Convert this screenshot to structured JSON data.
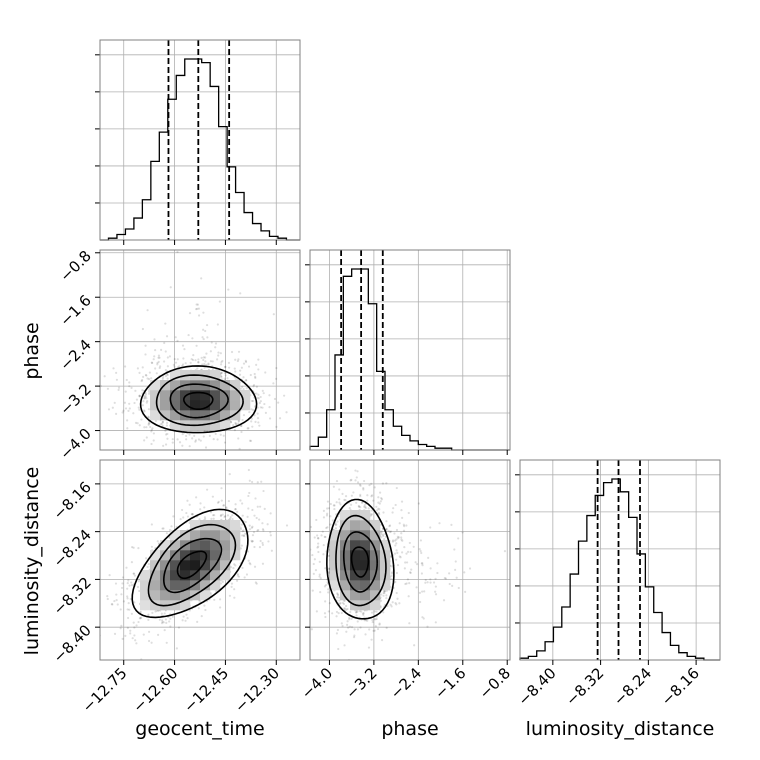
{
  "chart_data": {
    "type": "corner",
    "parameters": [
      "geocent_time",
      "phase",
      "luminosity_distance"
    ],
    "grid": true,
    "quantile_lines": "dashed",
    "axes": {
      "geocent_time": {
        "range": [
          -12.82,
          -12.23
        ],
        "ticks": [
          -12.75,
          -12.6,
          -12.45,
          -12.3
        ],
        "tick_labels": [
          "−12.75",
          "−12.60",
          "−12.45",
          "−12.30"
        ],
        "quantiles": [
          -12.618,
          -12.53,
          -12.439
        ]
      },
      "phase": {
        "range": [
          -4.35,
          -0.75
        ],
        "ticks": [
          -4.0,
          -3.2,
          -2.4,
          -1.6,
          -0.8
        ],
        "tick_labels": [
          "−4.0",
          "−3.2",
          "−2.4",
          "−1.6",
          "−0.8"
        ],
        "quantiles": [
          -3.79,
          -3.43,
          -3.04
        ]
      },
      "luminosity_distance": {
        "range": [
          -8.455,
          -8.12
        ],
        "ticks": [
          -8.4,
          -8.32,
          -8.24,
          -8.16
        ],
        "tick_labels": [
          "−8.40",
          "−8.32",
          "−8.24",
          "−8.16"
        ],
        "quantiles": [
          -8.325,
          -8.29,
          -8.254
        ]
      }
    },
    "histograms": {
      "geocent_time": {
        "bin_edges": [
          -12.82,
          -12.795,
          -12.77,
          -12.745,
          -12.72,
          -12.695,
          -12.67,
          -12.645,
          -12.62,
          -12.595,
          -12.57,
          -12.545,
          -12.52,
          -12.495,
          -12.47,
          -12.445,
          -12.42,
          -12.395,
          -12.37,
          -12.345,
          -12.32,
          -12.295,
          -12.27,
          -12.245,
          -12.23
        ],
        "counts": [
          0,
          1,
          3,
          6,
          12,
          22,
          43,
          59,
          77,
          90,
          99,
          99,
          97,
          84,
          62,
          40,
          26,
          15,
          9,
          5,
          2,
          1,
          0,
          0
        ]
      },
      "phase": {
        "bin_edges": [
          -4.35,
          -4.2,
          -4.05,
          -3.9,
          -3.75,
          -3.6,
          -3.45,
          -3.3,
          -3.15,
          -3.0,
          -2.85,
          -2.7,
          -2.55,
          -2.4,
          -2.25,
          -2.1,
          -1.95,
          -1.8,
          -1.65,
          -1.5,
          -1.35,
          -1.2,
          -1.05,
          -0.9,
          -0.75
        ],
        "counts": [
          2,
          7,
          22,
          52,
          95,
          99,
          99,
          80,
          43,
          22,
          13,
          8,
          5,
          3,
          2,
          1,
          1,
          0,
          0,
          0,
          0,
          0,
          0,
          0
        ]
      },
      "luminosity_distance": {
        "bin_edges": [
          -8.455,
          -8.441,
          -8.427,
          -8.413,
          -8.399,
          -8.385,
          -8.371,
          -8.357,
          -8.343,
          -8.329,
          -8.315,
          -8.301,
          -8.287,
          -8.273,
          -8.259,
          -8.245,
          -8.231,
          -8.217,
          -8.203,
          -8.189,
          -8.175,
          -8.161,
          -8.147,
          -8.133,
          -8.12
        ],
        "counts": [
          1,
          2,
          5,
          10,
          18,
          29,
          47,
          65,
          79,
          90,
          97,
          99,
          92,
          78,
          58,
          40,
          26,
          15,
          8,
          4,
          2,
          1,
          0,
          0
        ]
      }
    },
    "pairs": [
      {
        "x": "geocent_time",
        "y": "phase",
        "center": [
          -12.53,
          -3.46
        ],
        "spread": [
          0.085,
          0.3
        ],
        "correlation": 0.0,
        "contour_levels": [
          "0.5σ",
          "1σ",
          "1.5σ",
          "2σ"
        ]
      },
      {
        "x": "geocent_time",
        "y": "luminosity_distance",
        "center": [
          -12.55,
          -8.295
        ],
        "spread": [
          0.085,
          0.045
        ],
        "correlation": 0.55,
        "contour_levels": [
          "0.5σ",
          "1σ",
          "1.5σ",
          "2σ"
        ]
      },
      {
        "x": "phase",
        "y": "luminosity_distance",
        "center": [
          -3.45,
          -8.29
        ],
        "spread": [
          0.3,
          0.05
        ],
        "correlation": -0.1,
        "contour_levels": [
          "0.5σ",
          "1σ",
          "1.5σ",
          "2σ"
        ]
      }
    ]
  }
}
